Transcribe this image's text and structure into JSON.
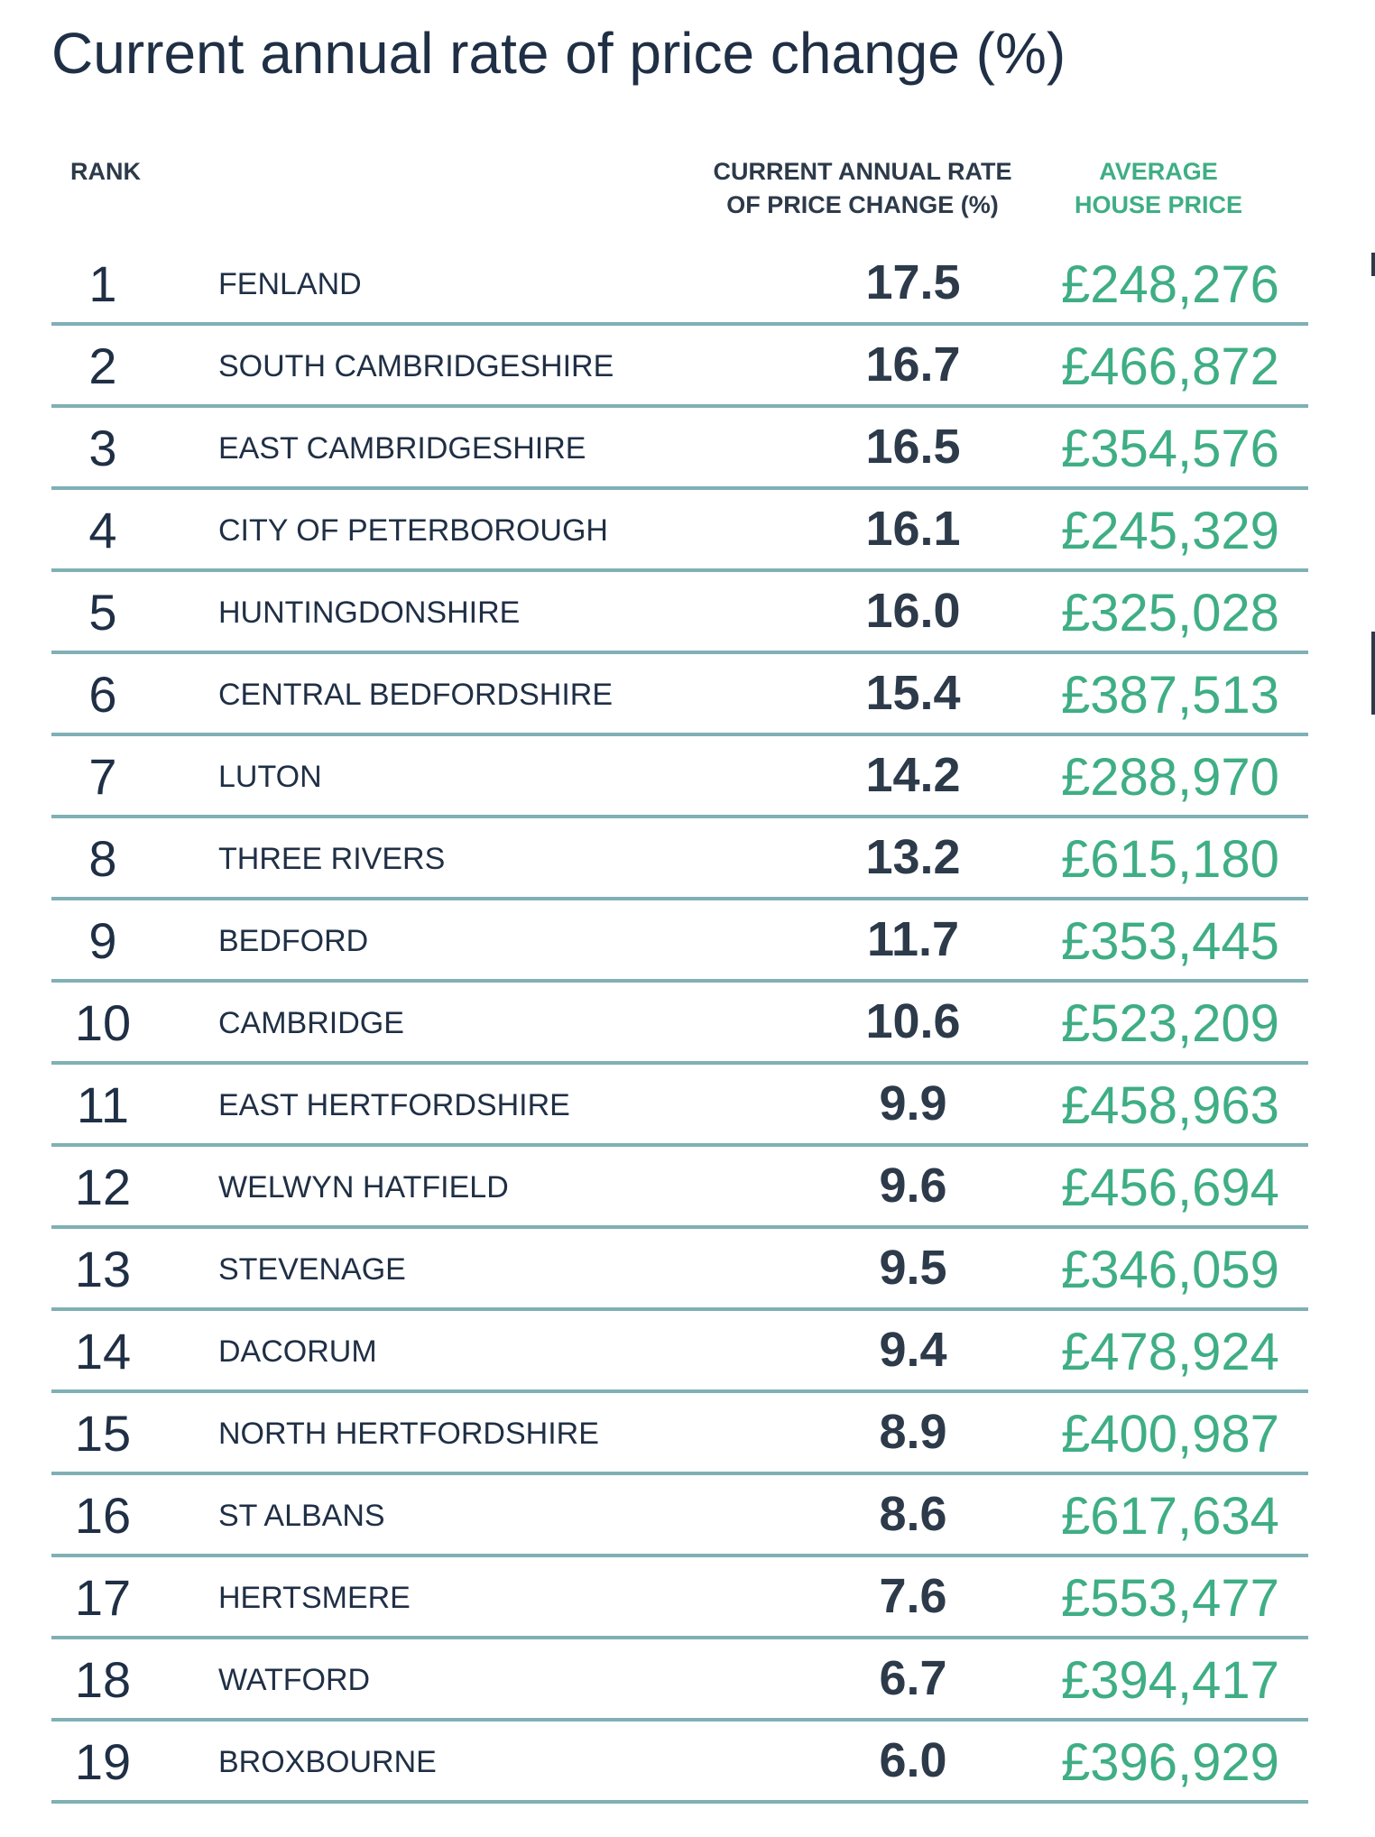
{
  "title": "Current annual rate of price change (%)",
  "headers": {
    "rank": "RANK",
    "rate_line1": "CURRENT ANNUAL RATE",
    "rate_line2": "OF PRICE CHANGE (%)",
    "price_line1": "AVERAGE",
    "price_line2": "HOUSE PRICE"
  },
  "colors": {
    "text_dark": "#1f2f45",
    "price_green": "#3fae84",
    "divider_teal": "#7fb0b4"
  },
  "chart_data": {
    "type": "table",
    "title": "Current annual rate of price change (%)",
    "columns": [
      "RANK",
      "",
      "CURRENT ANNUAL RATE OF PRICE CHANGE (%)",
      "AVERAGE HOUSE PRICE"
    ],
    "rows": [
      {
        "rank": "1",
        "area": "FENLAND",
        "rate": "17.5",
        "price": "£248,276"
      },
      {
        "rank": "2",
        "area": "SOUTH CAMBRIDGESHIRE",
        "rate": "16.7",
        "price": "£466,872"
      },
      {
        "rank": "3",
        "area": "EAST CAMBRIDGESHIRE",
        "rate": "16.5",
        "price": "£354,576"
      },
      {
        "rank": "4",
        "area": "CITY OF PETERBOROUGH",
        "rate": "16.1",
        "price": "£245,329"
      },
      {
        "rank": "5",
        "area": "HUNTINGDONSHIRE",
        "rate": "16.0",
        "price": "£325,028"
      },
      {
        "rank": "6",
        "area": "CENTRAL BEDFORDSHIRE",
        "rate": "15.4",
        "price": "£387,513"
      },
      {
        "rank": "7",
        "area": "LUTON",
        "rate": "14.2",
        "price": "£288,970"
      },
      {
        "rank": "8",
        "area": "THREE RIVERS",
        "rate": "13.2",
        "price": "£615,180"
      },
      {
        "rank": "9",
        "area": "BEDFORD",
        "rate": "11.7",
        "price": "£353,445"
      },
      {
        "rank": "10",
        "area": "CAMBRIDGE",
        "rate": "10.6",
        "price": "£523,209"
      },
      {
        "rank": "11",
        "area": "EAST HERTFORDSHIRE",
        "rate": "9.9",
        "price": "£458,963"
      },
      {
        "rank": "12",
        "area": "WELWYN HATFIELD",
        "rate": "9.6",
        "price": "£456,694"
      },
      {
        "rank": "13",
        "area": "STEVENAGE",
        "rate": "9.5",
        "price": "£346,059"
      },
      {
        "rank": "14",
        "area": "DACORUM",
        "rate": "9.4",
        "price": "£478,924"
      },
      {
        "rank": "15",
        "area": "NORTH HERTFORDSHIRE",
        "rate": "8.9",
        "price": "£400,987"
      },
      {
        "rank": "16",
        "area": "ST ALBANS",
        "rate": "8.6",
        "price": "£617,634"
      },
      {
        "rank": "17",
        "area": "HERTSMERE",
        "rate": "7.6",
        "price": "£553,477"
      },
      {
        "rank": "18",
        "area": "WATFORD",
        "rate": "6.7",
        "price": "£394,417"
      },
      {
        "rank": "19",
        "area": "BROXBOURNE",
        "rate": "6.0",
        "price": "£396,929"
      }
    ]
  }
}
